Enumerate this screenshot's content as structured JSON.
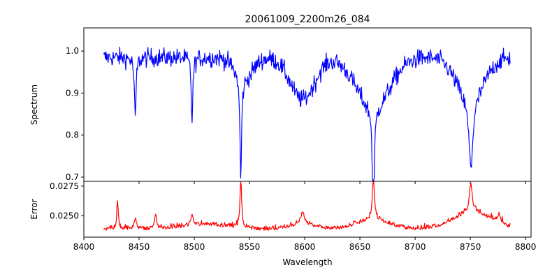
{
  "chart_data": [
    {
      "type": "line",
      "title": "20061009_2200m26_084",
      "xlabel": "",
      "ylabel": "Spectrum",
      "xlim": [
        8400,
        8805
      ],
      "ylim": [
        0.69,
        1.055
      ],
      "xticks": [
        8400,
        8450,
        8500,
        8550,
        8600,
        8650,
        8700,
        8750,
        8800
      ],
      "yticks": [
        0.7,
        0.8,
        0.9,
        1.0
      ],
      "ytick_labels": [
        "0.7",
        "0.8",
        "0.9",
        "1.0"
      ],
      "show_xtick_labels": false,
      "grid": false,
      "series": [
        {
          "color": "#0000ff",
          "x_range": [
            8418,
            8786
          ],
          "continuum": 0.985,
          "noise": 0.018,
          "absorption_lines": [
            {
              "center": 8446.5,
              "depth": 0.15,
              "width": 0.9
            },
            {
              "center": 8498.0,
              "depth": 0.15,
              "width": 0.9
            },
            {
              "center": 8542.1,
              "depth": 0.24,
              "width": 0.9
            },
            {
              "center": 8662.2,
              "depth": 0.27,
              "width": 1.0
            },
            {
              "center": 8750.5,
              "depth": 0.16,
              "width": 2.2
            }
          ],
          "broad_wings": [
            {
              "center": 8598,
              "depth": 0.1,
              "width": 11
            },
            {
              "center": 8662,
              "depth": 0.12,
              "width": 15
            },
            {
              "center": 8750,
              "depth": 0.1,
              "width": 12
            },
            {
              "center": 8545,
              "depth": 0.05,
              "width": 8
            }
          ]
        }
      ]
    },
    {
      "type": "line",
      "title": "",
      "xlabel": "Wavelength",
      "ylabel": "Error",
      "xlim": [
        8400,
        8805
      ],
      "ylim": [
        0.0232,
        0.0279
      ],
      "xticks": [
        8400,
        8450,
        8500,
        8550,
        8600,
        8650,
        8700,
        8750,
        8800
      ],
      "xtick_labels": [
        "8400",
        "8450",
        "8500",
        "8550",
        "8600",
        "8650",
        "8700",
        "8750",
        "8800"
      ],
      "yticks": [
        0.025,
        0.0275
      ],
      "ytick_labels": [
        "0.0250",
        "0.0275"
      ],
      "grid": false,
      "series": [
        {
          "color": "#ff0000",
          "x_range": [
            8418,
            8786
          ],
          "baseline": 0.02375,
          "noise": 0.0002,
          "peaks": [
            {
              "center": 8430.5,
              "height": 0.0024,
              "width": 0.8
            },
            {
              "center": 8446.5,
              "height": 0.0009,
              "width": 1.2
            },
            {
              "center": 8465.0,
              "height": 0.0012,
              "width": 1.2
            },
            {
              "center": 8498.0,
              "height": 0.001,
              "width": 1.2
            },
            {
              "center": 8542.1,
              "height": 0.0039,
              "width": 0.9
            },
            {
              "center": 8598.0,
              "height": 0.001,
              "width": 2.0
            },
            {
              "center": 8662.2,
              "height": 0.004,
              "width": 1.0
            },
            {
              "center": 8750.5,
              "height": 0.0025,
              "width": 1.5
            },
            {
              "center": 8776.0,
              "height": 0.0008,
              "width": 1.5
            }
          ],
          "broad_bumps": [
            {
              "center": 8510,
              "height": 0.0004,
              "width": 20
            },
            {
              "center": 8598,
              "height": 0.0004,
              "width": 12
            },
            {
              "center": 8662,
              "height": 0.0008,
              "width": 15
            },
            {
              "center": 8752,
              "height": 0.0014,
              "width": 18
            }
          ]
        }
      ]
    }
  ]
}
